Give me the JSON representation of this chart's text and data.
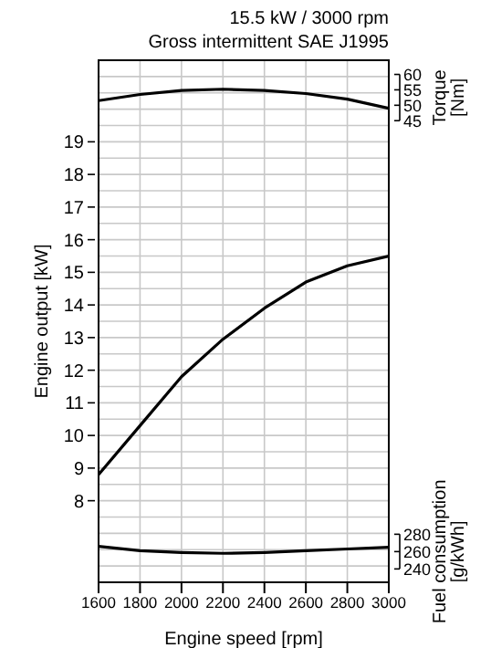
{
  "chart_data": {
    "type": "line",
    "title": "15.5 kW / 3000 rpm",
    "subtitle": "Gross intermittent SAE J1995",
    "xlabel": "Engine speed [rpm]",
    "ylabel": "Engine output [kW]",
    "y2label": "Torque [Nm]",
    "y3label": "Fuel consumption [g/kWh]",
    "x": [
      1600,
      1800,
      2000,
      2200,
      2400,
      2600,
      2800,
      3000
    ],
    "series": [
      {
        "color": "#000000",
        "axis": "y2",
        "values": [
          51.5,
          53.5,
          54.8,
          55.2,
          54.8,
          53.8,
          52,
          49
        ]
      },
      {
        "color": "#000000",
        "axis": "y",
        "values": [
          8.8,
          10.3,
          11.8,
          12.95,
          13.9,
          14.7,
          15.2,
          15.5
        ]
      },
      {
        "color": "#000000",
        "axis": "y3",
        "values": [
          266,
          261,
          259,
          258,
          259,
          261,
          263,
          265
        ]
      }
    ],
    "xlim": [
      1600,
      3000
    ],
    "xticks": [
      1600,
      1800,
      2000,
      2200,
      2400,
      2600,
      2800,
      3000
    ],
    "ylim": [
      5.5,
      21.5
    ],
    "yticks": [
      {
        "value": 6,
        "label": null
      },
      {
        "value": 6.5,
        "label": null
      },
      {
        "value": 7,
        "label": null
      },
      {
        "value": 7.5,
        "label": null
      },
      8,
      {
        "value": 8.5,
        "label": null
      },
      9,
      {
        "value": 9.5,
        "label": null
      },
      10,
      {
        "value": 10.5,
        "label": null
      },
      11,
      {
        "value": 11.5,
        "label": null
      },
      12,
      {
        "value": 12.5,
        "label": null
      },
      13,
      {
        "value": 13.5,
        "label": null
      },
      14,
      {
        "value": 14.5,
        "label": null
      },
      15,
      {
        "value": 15.5,
        "label": null
      },
      16,
      {
        "value": 16.5,
        "label": null
      },
      17,
      {
        "value": 17.5,
        "label": null
      },
      18,
      {
        "value": 18.5,
        "label": null
      },
      19,
      {
        "value": 19.5,
        "label": null
      },
      {
        "value": 20,
        "label": null
      },
      {
        "value": 20.5,
        "label": null
      },
      {
        "value": 21,
        "label": null
      }
    ],
    "y2lim": [
      -104.7,
      64.6
    ],
    "y2ticks": [
      45,
      50,
      55,
      60
    ],
    "y3lim": [
      224.6,
      826.7
    ],
    "y3ticks": [
      240,
      260,
      280
    ],
    "grid": true,
    "marker": "none",
    "line_style": "solid"
  }
}
